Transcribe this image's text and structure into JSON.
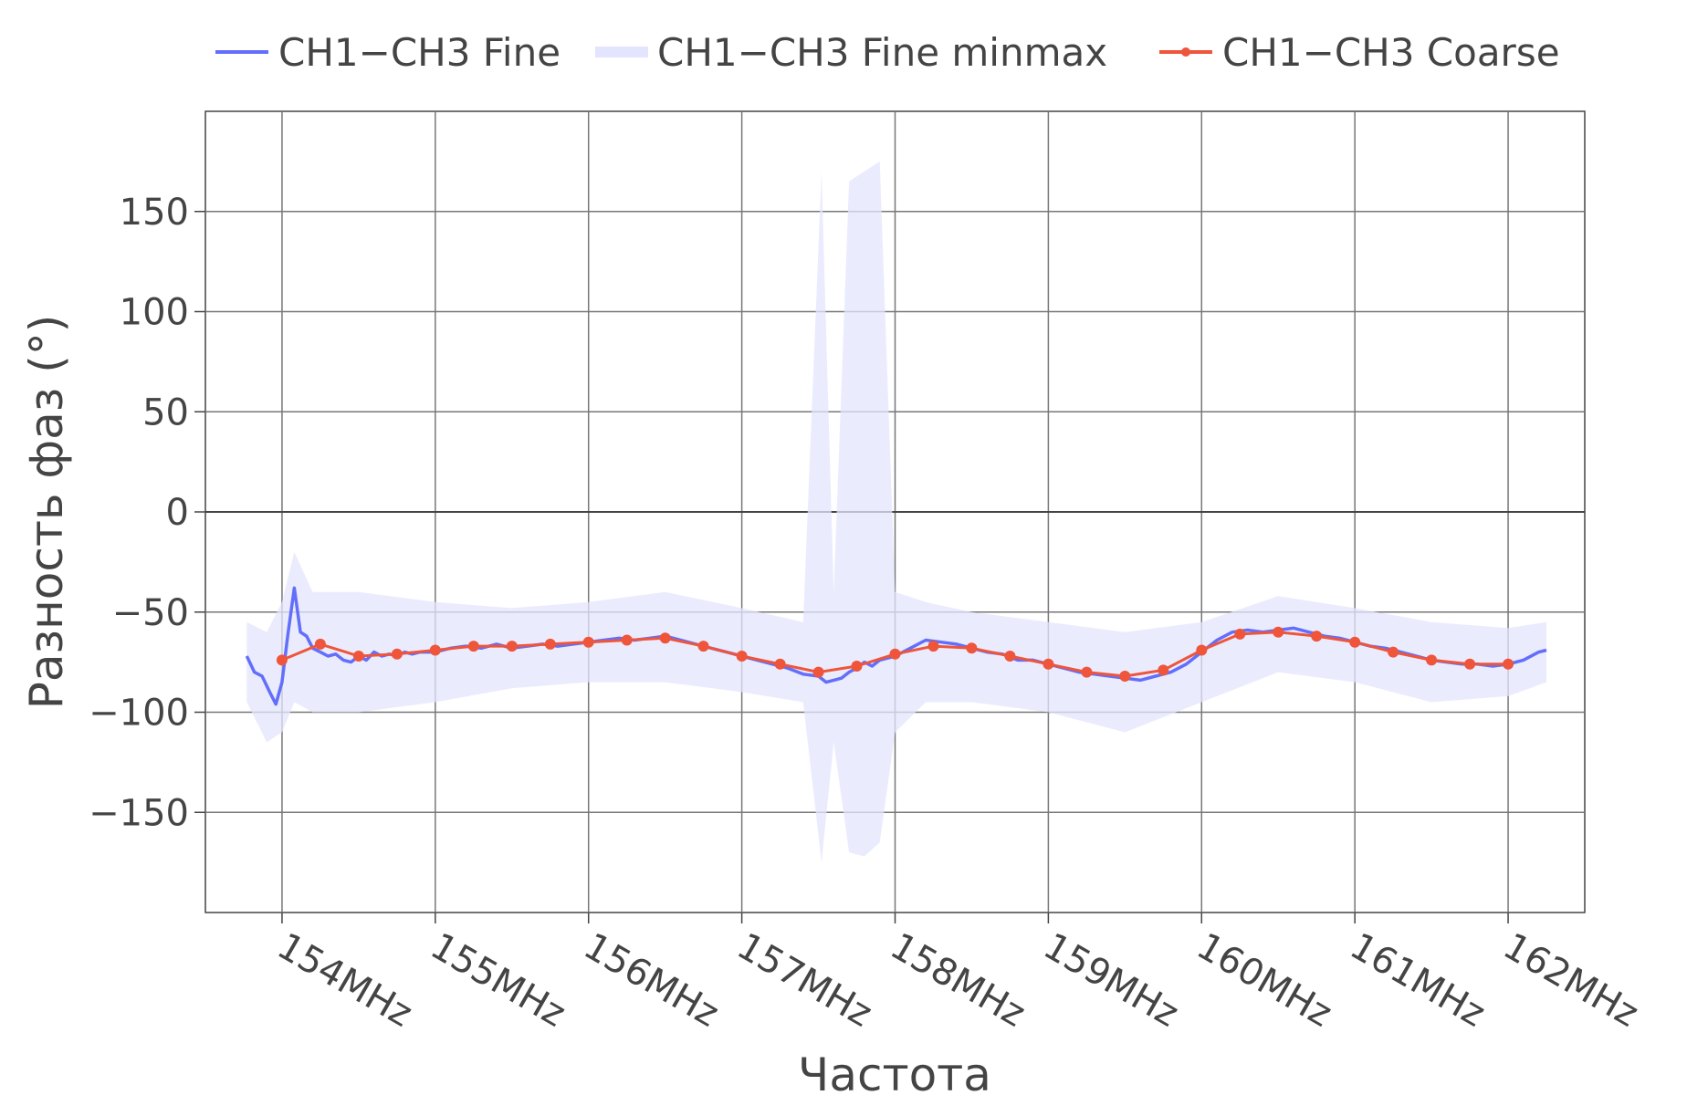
{
  "chart_data": {
    "type": "line",
    "title": "",
    "xlabel": "Частота",
    "ylabel": "Разность фаз (°)",
    "xlim": [
      153.5,
      162.5
    ],
    "ylim": [
      -200,
      200
    ],
    "x_ticks": [
      154,
      155,
      156,
      157,
      158,
      159,
      160,
      161,
      162
    ],
    "x_tick_labels": [
      "154MHz",
      "155MHz",
      "156MHz",
      "157MHz",
      "158MHz",
      "159MHz",
      "160MHz",
      "161MHz",
      "162MHz"
    ],
    "y_ticks": [
      150,
      100,
      50,
      0,
      -50,
      -100,
      -150
    ],
    "y_tick_labels": [
      "150",
      "100",
      "50",
      "0",
      "−50",
      "−100",
      "−150"
    ],
    "grid": true,
    "legend_position": "top",
    "legend": [
      "CH1−CH3 Fine",
      "CH1−CH3 Fine minmax",
      "CH1−CH3 Coarse"
    ],
    "series": [
      {
        "name": "CH1−CH3 Fine",
        "color": "#636efa",
        "x": [
          153.77,
          153.82,
          153.87,
          153.92,
          153.96,
          154.0,
          154.04,
          154.08,
          154.12,
          154.16,
          154.2,
          154.25,
          154.3,
          154.35,
          154.4,
          154.45,
          154.5,
          154.55,
          154.6,
          154.65,
          154.7,
          154.75,
          154.8,
          154.85,
          154.9,
          155.0,
          155.1,
          155.2,
          155.3,
          155.4,
          155.5,
          155.6,
          155.7,
          155.8,
          155.9,
          156.0,
          156.1,
          156.2,
          156.3,
          156.4,
          156.5,
          156.6,
          156.7,
          156.8,
          156.9,
          157.0,
          157.1,
          157.2,
          157.3,
          157.4,
          157.5,
          157.55,
          157.6,
          157.65,
          157.7,
          157.75,
          157.8,
          157.85,
          157.9,
          158.0,
          158.1,
          158.2,
          158.3,
          158.4,
          158.5,
          158.6,
          158.7,
          158.8,
          158.9,
          159.0,
          159.1,
          159.2,
          159.3,
          159.4,
          159.5,
          159.6,
          159.7,
          159.8,
          159.9,
          160.0,
          160.1,
          160.2,
          160.3,
          160.4,
          160.5,
          160.6,
          160.7,
          160.8,
          160.9,
          161.0,
          161.1,
          161.2,
          161.3,
          161.4,
          161.5,
          161.6,
          161.7,
          161.8,
          161.9,
          162.0,
          162.1,
          162.2,
          162.25
        ],
        "y": [
          -72,
          -80,
          -82,
          -90,
          -96,
          -85,
          -60,
          -38,
          -60,
          -62,
          -68,
          -70,
          -72,
          -71,
          -74,
          -75,
          -72,
          -74,
          -70,
          -72,
          -71,
          -72,
          -70,
          -71,
          -70,
          -70,
          -68,
          -67,
          -68,
          -66,
          -68,
          -67,
          -66,
          -67,
          -66,
          -65,
          -64,
          -63,
          -64,
          -63,
          -62,
          -64,
          -66,
          -68,
          -70,
          -72,
          -74,
          -76,
          -78,
          -81,
          -82,
          -85,
          -84,
          -83,
          -80,
          -78,
          -75,
          -77,
          -74,
          -72,
          -68,
          -64,
          -65,
          -66,
          -68,
          -70,
          -71,
          -74,
          -74,
          -76,
          -78,
          -80,
          -81,
          -82,
          -83,
          -84,
          -82,
          -80,
          -76,
          -70,
          -64,
          -60,
          -59,
          -60,
          -59,
          -58,
          -60,
          -62,
          -63,
          -65,
          -67,
          -68,
          -70,
          -72,
          -74,
          -75,
          -76,
          -76,
          -77,
          -76,
          -74,
          -70,
          -69
        ]
      },
      {
        "name": "CH1−CH3 Fine minmax",
        "color": "#e3e5fe",
        "x": [
          153.77,
          153.9,
          154.0,
          154.08,
          154.2,
          154.5,
          155.0,
          155.5,
          156.0,
          156.5,
          157.0,
          157.4,
          157.52,
          157.6,
          157.7,
          157.8,
          157.9,
          158.0,
          158.2,
          158.5,
          159.0,
          159.5,
          160.0,
          160.5,
          161.0,
          161.5,
          162.0,
          162.25
        ],
        "upper": [
          -55,
          -60,
          -45,
          -20,
          -40,
          -40,
          -45,
          -48,
          -45,
          -40,
          -48,
          -55,
          170,
          -40,
          165,
          170,
          175,
          -40,
          -45,
          -50,
          -55,
          -60,
          -55,
          -42,
          -48,
          -55,
          -58,
          -55
        ],
        "lower": [
          -95,
          -115,
          -110,
          -95,
          -100,
          -100,
          -95,
          -88,
          -85,
          -85,
          -90,
          -95,
          -175,
          -115,
          -170,
          -172,
          -165,
          -110,
          -95,
          -95,
          -100,
          -110,
          -95,
          -80,
          -85,
          -95,
          -92,
          -85
        ]
      },
      {
        "name": "CH1−CH3 Coarse",
        "color": "#ef553b",
        "x": [
          154.0,
          154.25,
          154.5,
          154.75,
          155.0,
          155.25,
          155.5,
          155.75,
          156.0,
          156.25,
          156.5,
          156.75,
          157.0,
          157.25,
          157.5,
          157.75,
          158.0,
          158.25,
          158.5,
          158.75,
          159.0,
          159.25,
          159.5,
          159.75,
          160.0,
          160.25,
          160.5,
          160.75,
          161.0,
          161.25,
          161.5,
          161.75,
          162.0
        ],
        "y": [
          -74,
          -66,
          -72,
          -71,
          -69,
          -67,
          -67,
          -66,
          -65,
          -64,
          -63,
          -67,
          -72,
          -76,
          -80,
          -77,
          -71,
          -67,
          -68,
          -72,
          -76,
          -80,
          -82,
          -79,
          -69,
          -61,
          -60,
          -62,
          -65,
          -70,
          -74,
          -76,
          -76
        ]
      }
    ]
  }
}
